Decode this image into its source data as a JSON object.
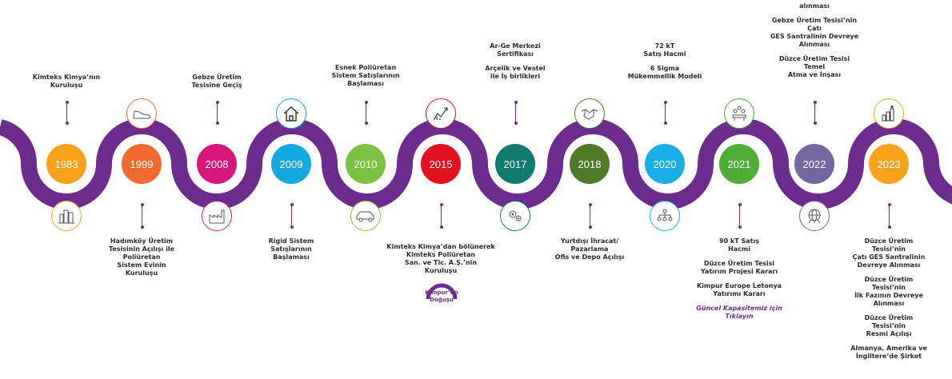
{
  "colors": {
    "track": "#6b2c8e",
    "text": "#2b2b2b",
    "link": "#6b2c8e"
  },
  "milestones": [
    {
      "year": "1983",
      "color": "#f7a21b",
      "icon": "city-buildings-icon",
      "icon_color": "#f7a21b",
      "text": [
        "Kimteks Kimya’nın",
        "Kuruluşu"
      ]
    },
    {
      "year": "1999",
      "color": "#f26a2e",
      "icon": "sneaker-icon",
      "icon_color": "#f26a2e",
      "text": [
        "Hadımköy Üretim",
        "Tesisinin Açılışı ile",
        "Poliüretan",
        "Sistem Evinin",
        "Kuruluşu"
      ]
    },
    {
      "year": "2008",
      "color": "#d8177d",
      "icon": "factory-icon",
      "icon_color": "#d8177d",
      "text": [
        "Gebze Üretim",
        "Tesisine Geçiş"
      ]
    },
    {
      "year": "2009",
      "color": "#15a9e0",
      "icon": "house-icon",
      "icon_color": "#15a9e0",
      "text": [
        "Rigid Sistem",
        "Satışlarının",
        "Başlaması"
      ]
    },
    {
      "year": "2010",
      "color": "#7cc242",
      "icon": "car-icon",
      "icon_color": "#7cc242",
      "text": [
        "Esnek Poliüretan",
        "Sistem Satışlarının",
        "Başlaması"
      ]
    },
    {
      "year": "2015",
      "color": "#e3101e",
      "icon": "growth-chart-icon",
      "icon_color": "#e3101e",
      "text": [
        "Kimteks Kimya’dan bölünerek",
        "Kimteks Poliüretan",
        "San. ve Tic. A.Ş.’nin",
        "Kuruluşu"
      ],
      "kimpur": [
        "Kimpur’un",
        "Doğuşu"
      ]
    },
    {
      "year": "2017",
      "color": "#0e7b6e",
      "icon": "gears-icon",
      "icon_color": "#0e7b6e",
      "paras": [
        [
          "Ar-Ge Merkezi",
          "Sertifikası"
        ],
        [
          "Arçelik ve Vestel",
          "ile İş birlikleri"
        ]
      ]
    },
    {
      "year": "2018",
      "color": "#4f7a28",
      "icon": "handshake-icon",
      "icon_color": "#4f7a28",
      "text": [
        "Yurtdışı İhracat/",
        "Pazarlama",
        "Ofis ve Depo Açılışı"
      ]
    },
    {
      "year": "2020",
      "color": "#19aee6",
      "icon": "team-network-icon",
      "icon_color": "#19aee6",
      "paras": [
        [
          "72 kT",
          "Satış Hacmi"
        ],
        [
          "6 Sigma",
          "Mükemmellik Modeli"
        ]
      ]
    },
    {
      "year": "2021",
      "color": "#4fae3a",
      "icon": "meeting-icon",
      "icon_color": "#4fae3a",
      "paras": [
        [
          "90 kT Satış",
          "Hacmi"
        ],
        [
          "Düzce Üretim Tesisi",
          "Yatırım Projesi Kararı"
        ],
        [
          "Kimpur Europe Letonya",
          "Yatırımı Kararı"
        ]
      ],
      "link": [
        "Güncel Kapasitemiz için",
        "Tıklayın"
      ]
    },
    {
      "year": "2022",
      "color": "#7367a2",
      "icon": "globe-network-icon",
      "icon_color": "#7367a2",
      "paras": [
        [
          "alınması"
        ],
        [
          "Gebze Üretim Tesisi’nin",
          "Çatı",
          "GES Santralinin Devreye",
          "Alınması"
        ],
        [
          "Düzce Üretim Tesisi",
          "Temel",
          "Atma ve İnşası"
        ]
      ]
    },
    {
      "year": "2023",
      "color": "#f7a21b",
      "icon": "podium-climber-icon",
      "icon_color": "#3a3a3a",
      "paras": [
        [
          "Düzce Üretim",
          "Tesisi’nin",
          "Çatı GES Santralinin",
          "Devreye Alınması"
        ],
        [
          "Düzce Üretim",
          "Tesisi’nin",
          "İlk Fazının Devreye",
          "Alınması"
        ],
        [
          "Düzce Üretim",
          "Tesisi’nin",
          "Resmi Açılışı"
        ],
        [
          "Almanya, Amerika ve",
          "İngiltere’de Şirket"
        ]
      ]
    }
  ]
}
